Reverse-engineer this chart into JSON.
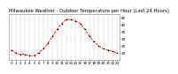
{
  "title": "Milwaukee Weather - Outdoor Temperature per Hour (Last 24 Hours)",
  "hours": [
    0,
    1,
    2,
    3,
    4,
    5,
    6,
    7,
    8,
    9,
    10,
    11,
    12,
    13,
    14,
    15,
    16,
    17,
    18,
    19,
    20,
    21,
    22,
    23
  ],
  "temps": [
    22,
    20,
    19,
    19,
    18,
    18,
    20,
    23,
    27,
    32,
    37,
    41,
    44,
    44,
    43,
    41,
    37,
    32,
    28,
    25,
    23,
    22,
    21,
    20
  ],
  "line_color": "#ff0000",
  "marker_color": "#000000",
  "bg_color": "#ffffff",
  "plot_bg_color": "#ffffff",
  "grid_color": "#999999",
  "ylim": [
    15,
    48
  ],
  "ytick_values": [
    20,
    25,
    30,
    35,
    40,
    45
  ],
  "ytick_labels": [
    "20",
    "25",
    "30",
    "35",
    "40",
    "45"
  ],
  "title_fontsize": 3.8,
  "tick_fontsize": 3.0,
  "line_width": 0.6,
  "marker_size": 1.5
}
